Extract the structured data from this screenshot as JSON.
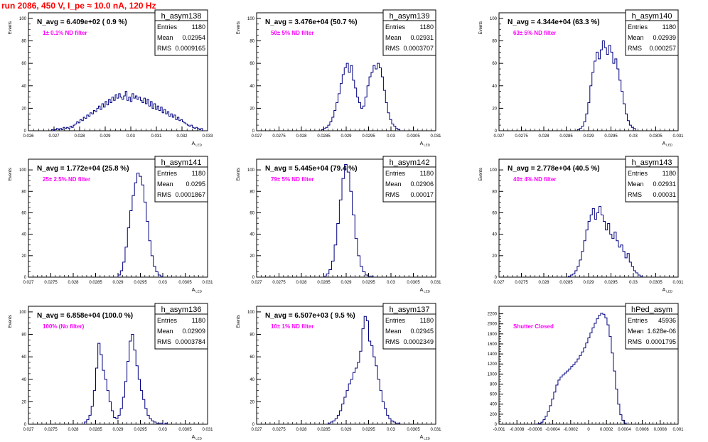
{
  "run_title": "run 2086,   450 V, I_pe ≈ 10.0 nA, 120 Hz",
  "colors": {
    "histogram": "#000080",
    "title": "#ff0000",
    "annotation": "#ff00ff",
    "axis": "#000000"
  },
  "stats_labels": {
    "entries": "Entries",
    "mean": "Mean",
    "rms": "RMS"
  },
  "chart_data": [
    {
      "type": "histogram",
      "name": "h_asym138",
      "navg": "N_avg = 6.409e+02 ( 0.9 %)",
      "filter": "1± 0.1% ND filter",
      "stats": {
        "entries": "1180",
        "mean": "0.02954",
        "rms": "0.0009165"
      },
      "ylabel": "Events",
      "xlabel": "A_{LED}",
      "xlim": [
        0.026,
        0.033
      ],
      "ylim": [
        0,
        105
      ],
      "xticks": [
        0.026,
        0.027,
        0.028,
        0.029,
        0.03,
        0.031,
        0.032,
        0.033
      ],
      "xtick_labels": [
        "0.026",
        "0.027",
        "0.028",
        "0.029",
        "0.03",
        "0.031",
        "0.032",
        "0.033"
      ],
      "yticks": [
        0,
        20,
        40,
        60,
        80,
        100
      ],
      "bin_edges": [
        0.0269,
        0.0328
      ],
      "counts": [
        1,
        0,
        1,
        2,
        1,
        2,
        1,
        3,
        2,
        3,
        2,
        4,
        3,
        5,
        6,
        8,
        7,
        10,
        9,
        12,
        11,
        14,
        13,
        16,
        15,
        18,
        17,
        20,
        22,
        19,
        24,
        21,
        26,
        23,
        28,
        25,
        30,
        27,
        32,
        29,
        33,
        30,
        28,
        31,
        35,
        27,
        30,
        26,
        33,
        29,
        31,
        28,
        30,
        27,
        25,
        29,
        24,
        28,
        22,
        26,
        20,
        24,
        19,
        22,
        18,
        21,
        16,
        19,
        15,
        17,
        13,
        15,
        12,
        14,
        10,
        12,
        9,
        10,
        8,
        7,
        6,
        5,
        4,
        5,
        3,
        2,
        3,
        2,
        1,
        2
      ]
    },
    {
      "type": "histogram",
      "name": "h_asym139",
      "navg": "N_avg = 3.476e+04 (50.7 %)",
      "filter": "50± 5% ND filter",
      "stats": {
        "entries": "1180",
        "mean": "0.02931",
        "rms": "0.0003707"
      },
      "ylabel": "Events",
      "xlabel": "A_{LED}",
      "xlim": [
        0.027,
        0.031
      ],
      "ylim": [
        0,
        105
      ],
      "xticks": [
        0.027,
        0.0275,
        0.028,
        0.0285,
        0.029,
        0.0295,
        0.03,
        0.0305,
        0.031
      ],
      "xtick_labels": [
        "0.027",
        "0.0275",
        "0.028",
        "0.0285",
        "0.029",
        "0.0295",
        "0.03",
        "0.0305",
        "0.031"
      ],
      "yticks": [
        0,
        20,
        40,
        60,
        80,
        100
      ],
      "bin_edges": [
        0.02845,
        0.0302
      ],
      "counts": [
        1,
        2,
        3,
        5,
        8,
        12,
        18,
        25,
        33,
        42,
        50,
        56,
        60,
        52,
        58,
        45,
        38,
        30,
        25,
        20,
        22,
        30,
        40,
        48,
        52,
        58,
        55,
        60,
        56,
        48,
        36,
        25,
        16,
        10,
        6,
        4,
        2,
        1
      ]
    },
    {
      "type": "histogram",
      "name": "h_asym140",
      "navg": "N_avg = 4.344e+04 (63.3 %)",
      "filter": "63± 5% ND filter",
      "stats": {
        "entries": "1180",
        "mean": "0.02939",
        "rms": "0.000257"
      },
      "ylabel": "Events",
      "xlabel": "A_{LED}",
      "xlim": [
        0.027,
        0.031
      ],
      "ylim": [
        0,
        105
      ],
      "xticks": [
        0.027,
        0.0275,
        0.028,
        0.0285,
        0.029,
        0.0295,
        0.03,
        0.0305,
        0.031
      ],
      "xtick_labels": [
        "0.027",
        "0.0275",
        "0.028",
        "0.0285",
        "0.029",
        "0.0295",
        "0.03",
        "0.0305",
        "0.031"
      ],
      "yticks": [
        0,
        20,
        40,
        60,
        80,
        100
      ],
      "bin_edges": [
        0.02875,
        0.03005
      ],
      "counts": [
        1,
        2,
        4,
        8,
        15,
        25,
        40,
        52,
        62,
        70,
        64,
        72,
        80,
        74,
        68,
        76,
        70,
        60,
        64,
        55,
        45,
        35,
        24,
        15,
        9,
        5,
        3,
        2
      ]
    },
    {
      "type": "histogram",
      "name": "h_asym141",
      "navg": "N_avg = 1.772e+04 (25.8 %)",
      "filter": "25± 2.5% ND filter",
      "stats": {
        "entries": "1180",
        "mean": "0.0295",
        "rms": "0.0001867"
      },
      "ylabel": "Events",
      "xlabel": "A_{LED}",
      "xlim": [
        0.027,
        0.031
      ],
      "ylim": [
        0,
        110
      ],
      "xticks": [
        0.027,
        0.0275,
        0.028,
        0.0285,
        0.029,
        0.0295,
        0.03,
        0.0305,
        0.031
      ],
      "xtick_labels": [
        "0.027",
        "0.0275",
        "0.028",
        "0.0285",
        "0.029",
        "0.0295",
        "0.03",
        "0.0305",
        "0.031"
      ],
      "yticks": [
        0,
        20,
        40,
        60,
        80,
        100
      ],
      "bin_edges": [
        0.029,
        0.03
      ],
      "counts": [
        2,
        6,
        14,
        28,
        46,
        62,
        76,
        88,
        97,
        94,
        86,
        70,
        52,
        34,
        20,
        10,
        5,
        2,
        1
      ]
    },
    {
      "type": "histogram",
      "name": "h_asym142",
      "navg": "N_avg = 5.445e+04 (79.4 %)",
      "filter": "79± 5% ND filter",
      "stats": {
        "entries": "1180",
        "mean": "0.02906",
        "rms": "0.00017"
      },
      "ylabel": "Events",
      "xlabel": "A_{LED}",
      "xlim": [
        0.027,
        0.031
      ],
      "ylim": [
        0,
        110
      ],
      "xticks": [
        0.027,
        0.0275,
        0.028,
        0.0285,
        0.029,
        0.0295,
        0.03,
        0.0305,
        0.031
      ],
      "xtick_labels": [
        "0.027",
        "0.0275",
        "0.028",
        "0.0285",
        "0.029",
        "0.0295",
        "0.03",
        "0.0305",
        "0.031"
      ],
      "yticks": [
        0,
        20,
        40,
        60,
        80,
        100
      ],
      "bin_edges": [
        0.0285,
        0.0296
      ],
      "counts": [
        1,
        3,
        7,
        15,
        30,
        50,
        72,
        92,
        105,
        98,
        80,
        58,
        36,
        20,
        10,
        5,
        2,
        1,
        1
      ]
    },
    {
      "type": "histogram",
      "name": "h_asym143",
      "navg": "N_avg = 2.778e+04 (40.5 %)",
      "filter": "40± 4% ND filter",
      "stats": {
        "entries": "1180",
        "mean": "0.02931",
        "rms": "0.00031"
      },
      "ylabel": "Events",
      "xlabel": "A_{LED}",
      "xlim": [
        0.027,
        0.031
      ],
      "ylim": [
        0,
        110
      ],
      "xticks": [
        0.027,
        0.0275,
        0.028,
        0.0285,
        0.029,
        0.0295,
        0.03,
        0.0305,
        0.031
      ],
      "xtick_labels": [
        "0.027",
        "0.0275",
        "0.028",
        "0.0285",
        "0.029",
        "0.0295",
        "0.03",
        "0.0305",
        "0.031"
      ],
      "yticks": [
        0,
        20,
        40,
        60,
        80,
        100
      ],
      "bin_edges": [
        0.02855,
        0.0302
      ],
      "counts": [
        1,
        2,
        3,
        6,
        10,
        16,
        24,
        34,
        44,
        52,
        58,
        64,
        54,
        60,
        66,
        58,
        52,
        44,
        50,
        40,
        36,
        42,
        34,
        28,
        30,
        24,
        18,
        22,
        14,
        10,
        6,
        4,
        2,
        1
      ]
    },
    {
      "type": "histogram",
      "name": "h_asym136",
      "navg": "N_avg = 6.858e+04 (100.0 %)",
      "filter": "100% (No filter)",
      "stats": {
        "entries": "1180",
        "mean": "0.02909",
        "rms": "0.0003784"
      },
      "ylabel": "Events",
      "xlabel": "A_{LED}",
      "xlim": [
        0.027,
        0.031
      ],
      "ylim": [
        0,
        105
      ],
      "xticks": [
        0.027,
        0.0275,
        0.028,
        0.0285,
        0.029,
        0.0295,
        0.03,
        0.0305,
        0.031
      ],
      "xtick_labels": [
        "0.027",
        "0.0275",
        "0.028",
        "0.0285",
        "0.029",
        "0.0295",
        "0.03",
        "0.0305",
        "0.031"
      ],
      "yticks": [
        0,
        20,
        40,
        60,
        80,
        100
      ],
      "bin_edges": [
        0.02825,
        0.0301
      ],
      "counts": [
        2,
        4,
        8,
        16,
        30,
        50,
        72,
        62,
        48,
        40,
        30,
        20,
        12,
        6,
        5,
        8,
        14,
        24,
        38,
        56,
        74,
        80,
        66,
        52,
        40,
        30,
        22,
        14,
        8,
        5,
        3,
        2,
        1,
        1,
        1,
        0,
        1
      ]
    },
    {
      "type": "histogram",
      "name": "h_asym137",
      "navg": "N_avg = 6.507e+03 ( 9.5 %)",
      "filter": "10± 1% ND filter",
      "stats": {
        "entries": "1180",
        "mean": "0.02945",
        "rms": "0.0002349"
      },
      "ylabel": "Events",
      "xlabel": "A_{LED}",
      "xlim": [
        0.027,
        0.031
      ],
      "ylim": [
        0,
        105
      ],
      "xticks": [
        0.027,
        0.0275,
        0.028,
        0.0285,
        0.029,
        0.0295,
        0.03,
        0.0305,
        0.031
      ],
      "xtick_labels": [
        "0.027",
        "0.0275",
        "0.028",
        "0.0285",
        "0.029",
        "0.0295",
        "0.03",
        "0.0305",
        "0.031"
      ],
      "yticks": [
        0,
        20,
        40,
        60,
        80,
        100
      ],
      "bin_edges": [
        0.0286,
        0.0302
      ],
      "counts": [
        1,
        2,
        3,
        5,
        8,
        12,
        18,
        24,
        30,
        36,
        40,
        46,
        50,
        55,
        65,
        85,
        96,
        92,
        74,
        70,
        60,
        52,
        40,
        30,
        20,
        14,
        8,
        5,
        3,
        2,
        1,
        1
      ]
    },
    {
      "type": "histogram",
      "name": "hPed_asym",
      "navg": "",
      "filter": "Shutter Closed",
      "stats": {
        "entries": "45936",
        "mean": "1.628e-06",
        "rms": "0.0001795"
      },
      "ylabel": "",
      "xlabel": "",
      "xlim": [
        -0.001,
        0.001
      ],
      "ylim": [
        0,
        2350
      ],
      "xticks": [
        -0.001,
        -0.0008,
        -0.0006,
        -0.0004,
        -0.0002,
        0,
        0.0002,
        0.0004,
        0.0006,
        0.0008,
        0.001
      ],
      "xtick_labels": [
        "-0.001",
        "-0.0008",
        "-0.0006",
        "-0.0004",
        "-0.0002",
        "0",
        "0.0002",
        "0.0004",
        "0.0006",
        "0.0008",
        "0.001"
      ],
      "yticks": [
        0,
        200,
        400,
        600,
        800,
        1000,
        1200,
        1400,
        1600,
        1800,
        2000,
        2200
      ],
      "bin_edges": [
        -0.00058,
        0.00042
      ],
      "counts": [
        5,
        15,
        40,
        90,
        160,
        250,
        370,
        500,
        640,
        780,
        880,
        940,
        980,
        1020,
        1060,
        1100,
        1150,
        1190,
        1240,
        1300,
        1370,
        1440,
        1520,
        1620,
        1720,
        1820,
        1920,
        2010,
        2100,
        2170,
        2210,
        2190,
        2120,
        1980,
        1750,
        1420,
        1060,
        700,
        400,
        190,
        80,
        25
      ]
    }
  ]
}
